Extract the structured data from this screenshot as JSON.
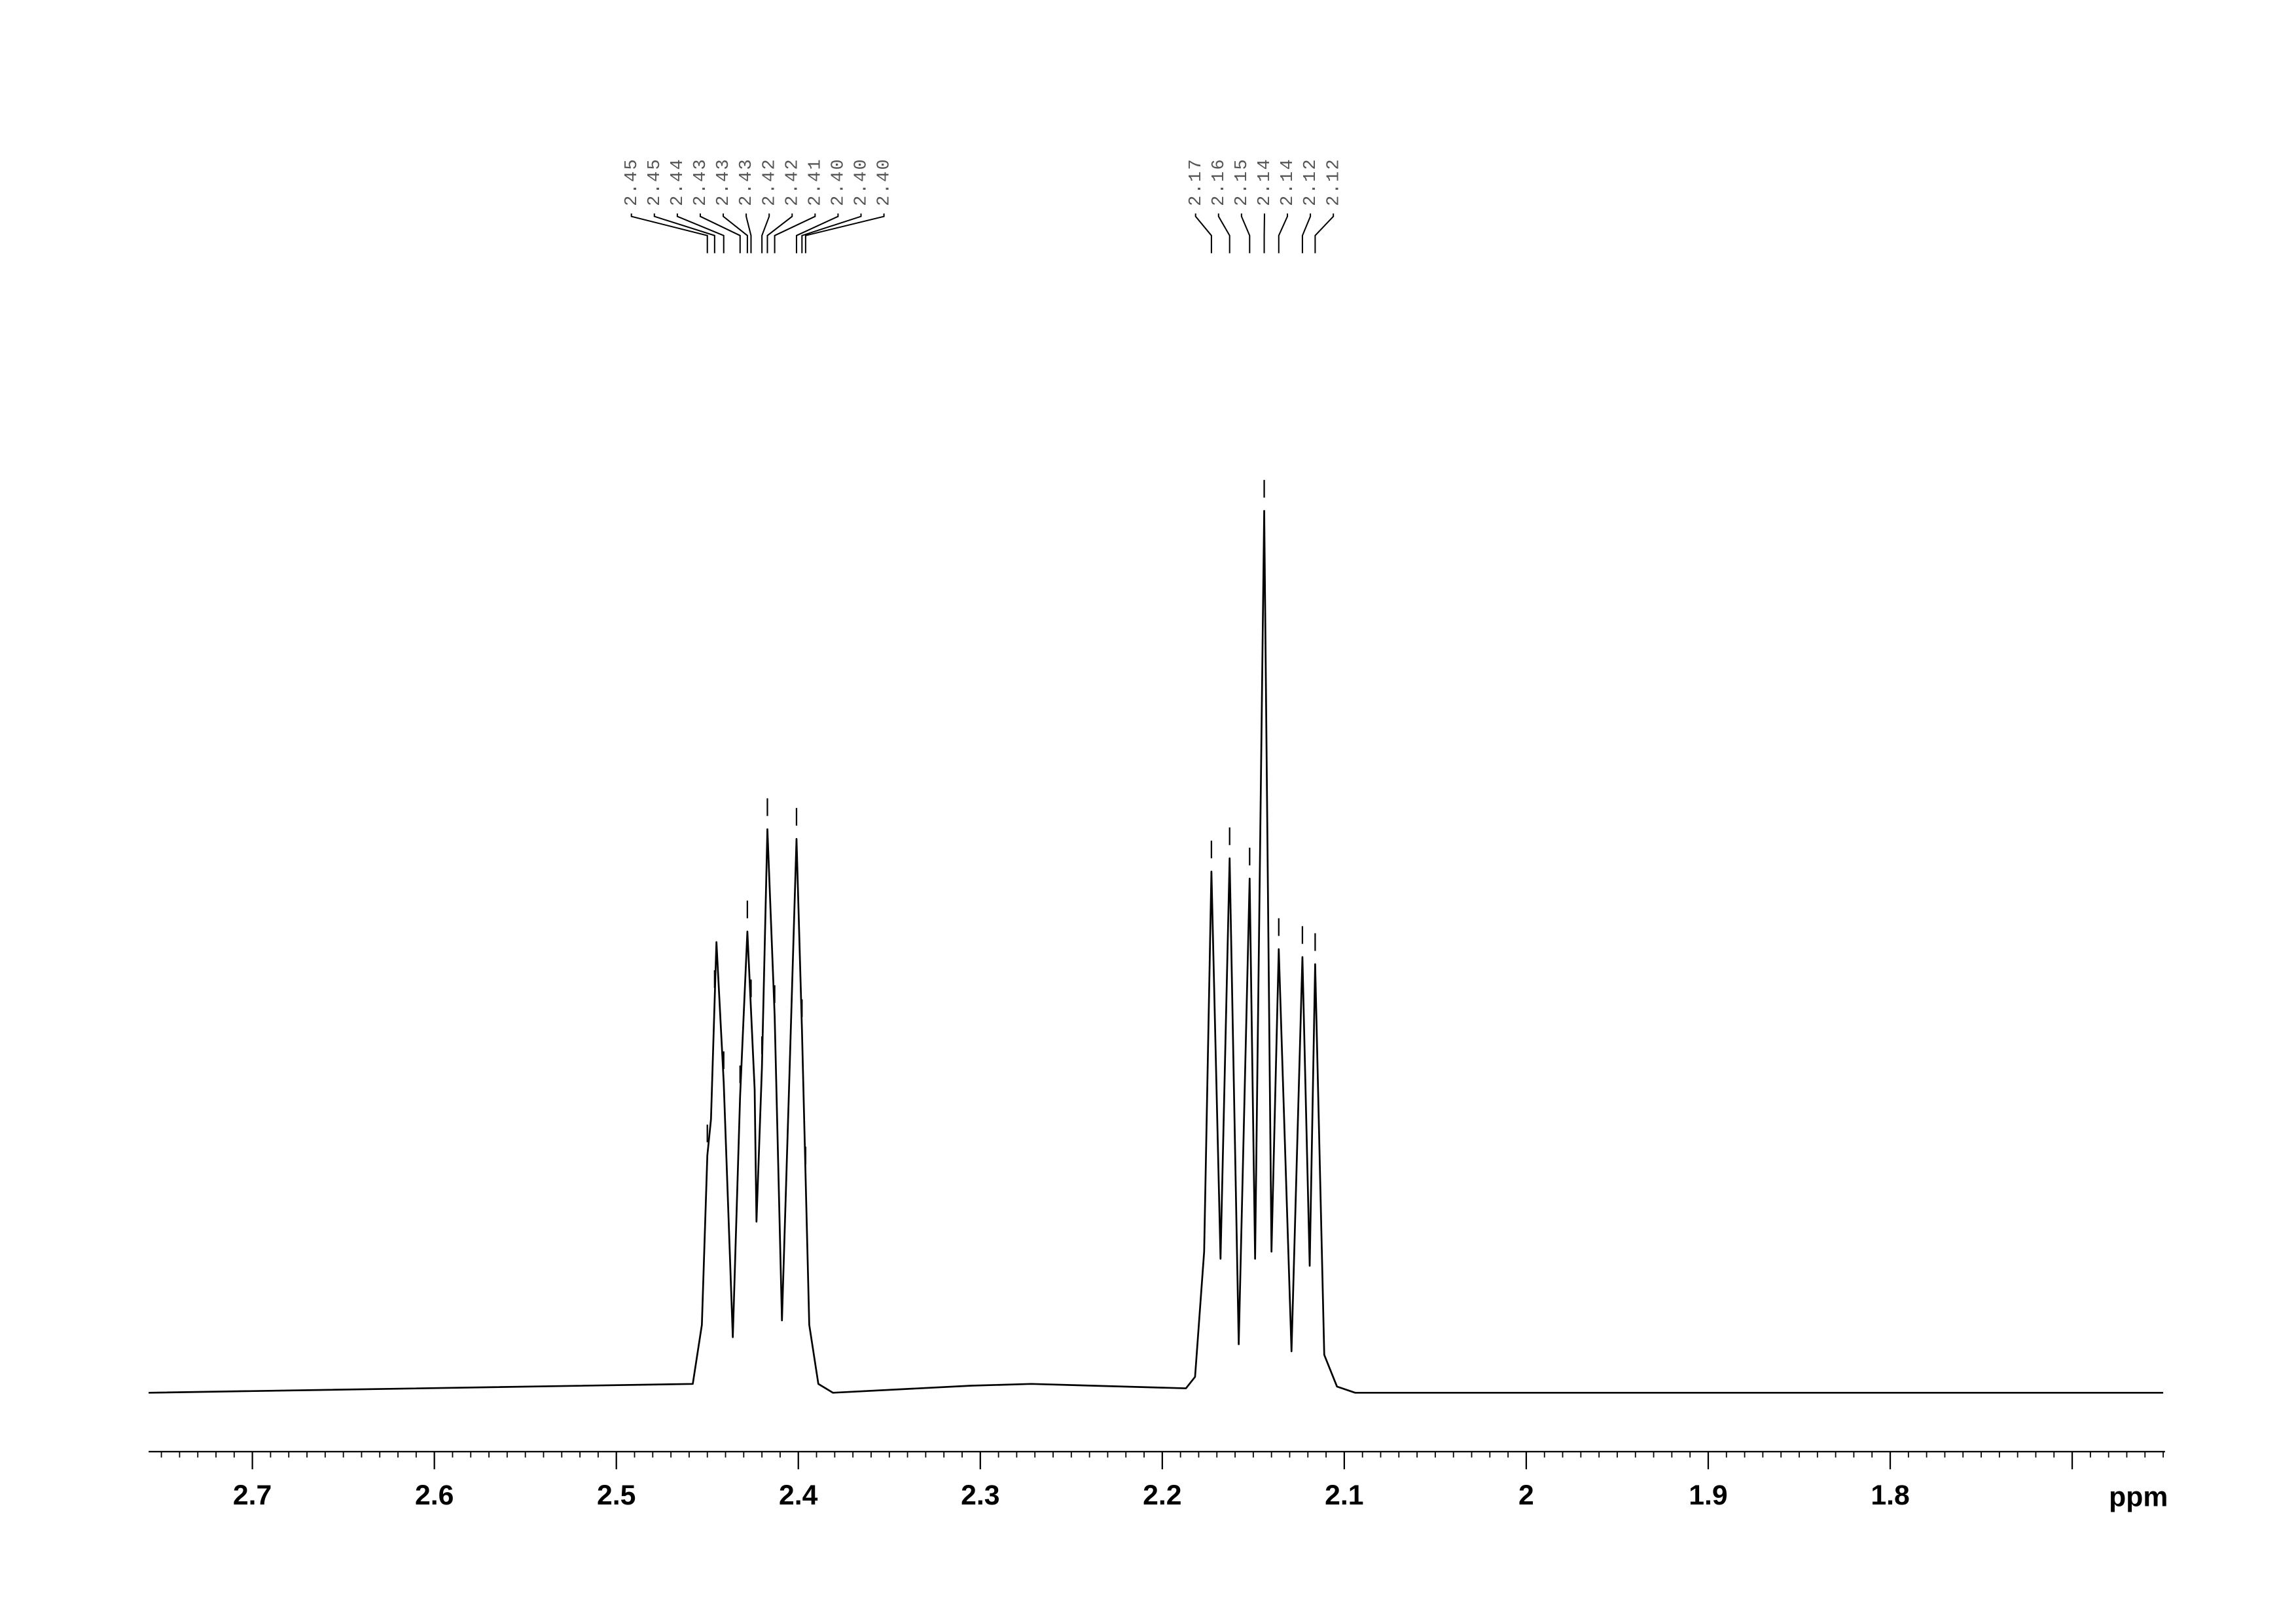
{
  "chart_data": {
    "type": "nmr",
    "x_label": "ppm",
    "xlim": [
      2.757,
      1.649
    ],
    "ylim": [
      0,
      100
    ],
    "xticks": [
      2.7,
      2.6,
      2.5,
      2.4,
      2.3,
      2.2,
      2.1,
      2.0,
      1.9,
      1.8,
      {
        "value": 1.7,
        "label": null
      }
    ],
    "xminorticks": [
      2.75,
      2.74,
      2.73,
      2.72,
      2.71,
      2.69,
      2.68,
      2.67,
      2.66,
      2.65,
      2.64,
      2.63,
      2.62,
      2.61,
      2.59,
      2.58,
      2.57,
      2.56,
      2.55,
      2.54,
      2.53,
      2.52,
      2.51,
      2.49,
      2.48,
      2.47,
      2.46,
      2.45,
      2.44,
      2.43,
      2.42,
      2.41,
      2.39,
      2.38,
      2.37,
      2.36,
      2.35,
      2.34,
      2.33,
      2.32,
      2.31,
      2.29,
      2.28,
      2.27,
      2.26,
      2.25,
      2.24,
      2.23,
      2.22,
      2.21,
      2.19,
      2.18,
      2.17,
      2.16,
      2.15,
      2.14,
      2.13,
      2.12,
      2.11,
      2.09,
      2.08,
      2.07,
      2.06,
      2.05,
      2.04,
      2.03,
      2.02,
      2.01,
      1.99,
      1.98,
      1.97,
      1.96,
      1.95,
      1.94,
      1.93,
      1.92,
      1.91,
      1.89,
      1.88,
      1.87,
      1.86,
      1.85,
      1.84,
      1.83,
      1.82,
      1.81,
      1.79,
      1.78,
      1.77,
      1.76,
      1.75,
      1.74,
      1.73,
      1.72,
      1.71,
      1.69,
      1.68,
      1.67,
      1.66,
      1.65
    ],
    "color": "#000000",
    "x": [
      2.757,
      2.458,
      2.453,
      2.45,
      2.448,
      2.445,
      2.441,
      2.436,
      2.432,
      2.428,
      2.424,
      2.423,
      2.42,
      2.417,
      2.413,
      2.409,
      2.405,
      2.401,
      2.398,
      2.394,
      2.389,
      2.381,
      2.305,
      2.272,
      2.187,
      2.182,
      2.177,
      2.173,
      2.168,
      2.163,
      2.158,
      2.152,
      2.149,
      2.144,
      2.14,
      2.136,
      2.129,
      2.123,
      2.119,
      2.116,
      2.111,
      2.104,
      2.094,
      1.65
    ],
    "values": [
      0,
      1.0,
      7.7,
      26.9,
      31.0,
      51.1,
      35.2,
      6.3,
      33.6,
      52.3,
      34.4,
      19.4,
      36.9,
      63.9,
      42.7,
      8.2,
      35.2,
      62.8,
      41.1,
      7.7,
      1.0,
      0,
      0.8,
      1.0,
      0.5,
      1.8,
      16.0,
      59.1,
      15.2,
      60.6,
      5.5,
      58.3,
      15.2,
      100,
      16.0,
      50.3,
      4.7,
      49.4,
      14.4,
      48.6,
      4.3,
      0.7,
      0,
      0
    ],
    "peak_labels": [
      [
        {
          "value": 2.45,
          "label": "2.45"
        },
        {
          "value": 2.446,
          "label": "2.45"
        },
        {
          "value": 2.441,
          "label": "2.44"
        },
        {
          "value": 2.432,
          "label": "2.43"
        },
        {
          "value": 2.428,
          "label": "2.43"
        },
        {
          "value": 2.426,
          "label": "2.43"
        },
        {
          "value": 2.42,
          "label": "2.42"
        },
        {
          "value": 2.417,
          "label": "2.42"
        },
        {
          "value": 2.413,
          "label": "2.41"
        },
        {
          "value": 2.401,
          "label": "2.40"
        },
        {
          "value": 2.398,
          "label": "2.40"
        },
        {
          "value": 2.396,
          "label": "2.40"
        }
      ],
      [
        {
          "value": 2.173,
          "label": "2.17"
        },
        {
          "value": 2.163,
          "label": "2.16"
        },
        {
          "value": 2.152,
          "label": "2.15"
        },
        {
          "value": 2.144,
          "label": "2.14"
        },
        {
          "value": 2.136,
          "label": "2.14"
        },
        {
          "value": 2.123,
          "label": "2.12"
        },
        {
          "value": 2.116,
          "label": "2.12"
        }
      ]
    ]
  }
}
